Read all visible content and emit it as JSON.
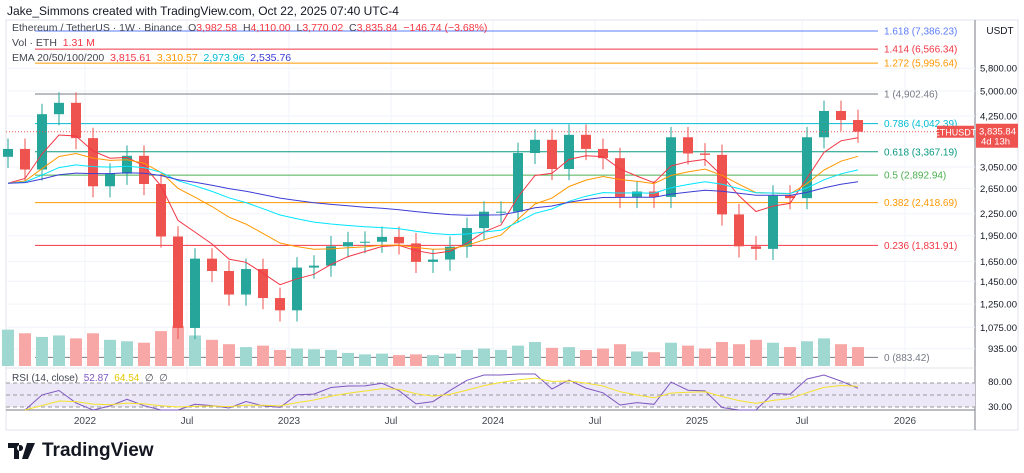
{
  "header": {
    "credit": "Jake_Simmons created with TradingView.com, Oct 22, 2025 07:40 UTC-4"
  },
  "legend": {
    "symbol": "Ethereum / TetherUS · 1W · Binance",
    "o_label": "O",
    "o": "3,982.58",
    "h_label": "H",
    "h": "4,110.00",
    "l_label": "L",
    "l": "3,770.02",
    "c_label": "C",
    "c": "3,835.84",
    "change": "−146.74 (−3.68%)",
    "vol_label": "Vol · ETH",
    "vol": "1.31 M",
    "ema_label": "EMA 20/50/100/200",
    "ema": [
      "3,815.61",
      "3,310.57",
      "2,973.96",
      "2,535.76"
    ]
  },
  "rsi": {
    "label": "RSI (14, close)",
    "value": "52.87",
    "ma": "64.54",
    "na1": "∅",
    "na2": "∅",
    "ticks": [
      "80.00",
      "30.00"
    ]
  },
  "logo": "TradingView",
  "colors": {
    "up": "#26a69a",
    "down": "#ef5350",
    "ema20": "#f23645",
    "ema50": "#ff9800",
    "ema100": "#00e5ff",
    "ema200": "#3d3dd6",
    "rsi": "#7e57c2",
    "rsi_ma": "#f5e12a"
  },
  "chart_data": {
    "type": "candlestick",
    "symbol": "ETHUSDT",
    "currency": "USDT",
    "scale": "log",
    "last_price": "3,835.84",
    "countdown": "4d 13h",
    "y_ticks": [
      5800,
      5000,
      4250,
      3050,
      2650,
      2250,
      1950,
      1650,
      1450,
      1250,
      1075,
      935
    ],
    "y_tick_labels": [
      "5,800.00",
      "5,000.00",
      "4,250.00",
      "3,050.00",
      "2,650.00",
      "2,250.00",
      "1,950.00",
      "1,650.00",
      "1,450.00",
      "1,250.00",
      "1,075.00",
      "935.00"
    ],
    "x_ticks": [
      "2022",
      "Jul",
      "2023",
      "Jul",
      "2024",
      "Jul",
      "2025",
      "Jul",
      "2026"
    ],
    "fib_levels": [
      {
        "label": "1.618 (7,386.23)",
        "price": 7386.23,
        "color": "#5b7cfa"
      },
      {
        "label": "1.414 (6,566.34)",
        "price": 6566.34,
        "color": "#f23645"
      },
      {
        "label": "1.272 (5,995.64)",
        "price": 5995.64,
        "color": "#ff9800"
      },
      {
        "label": "1 (4,902.46)",
        "price": 4902.46,
        "color": "#787b86"
      },
      {
        "label": "0.786 (4,042.39)",
        "price": 4042.39,
        "color": "#00bcd4"
      },
      {
        "label": "0.618 (3,367.19)",
        "price": 3367.19,
        "color": "#089981"
      },
      {
        "label": "0.5 (2,892.94)",
        "price": 2892.94,
        "color": "#4caf50"
      },
      {
        "label": "0.382 (2,418.69)",
        "price": 2418.69,
        "color": "#ff9800"
      },
      {
        "label": "0.236 (1,831.91)",
        "price": 1831.91,
        "color": "#f23645"
      },
      {
        "label": "0 (883.42)",
        "price": 883.42,
        "color": "#787b86"
      }
    ],
    "interval_shown": "monthly approximation",
    "closes": [
      3430,
      3000,
      4300,
      4630,
      3680,
      2690,
      2920,
      3280,
      2730,
      1940,
      1070,
      1680,
      1550,
      1330,
      1570,
      1300,
      1200,
      1585,
      1605,
      1820,
      1870,
      1875,
      1935,
      1855,
      1645,
      1670,
      1815,
      2050,
      2280,
      2280,
      3340,
      3640,
      3010,
      3760,
      3430,
      3230,
      2510,
      2600,
      2510,
      3700,
      3330,
      3300,
      2240,
      1820,
      1790,
      2530,
      2490,
      3700,
      4390,
      4140,
      3835.84
    ],
    "volumes": [
      5,
      4.5,
      4,
      4.2,
      3.8,
      4.5,
      3.6,
      3.4,
      3.2,
      4.8,
      5.5,
      4.2,
      3.6,
      3,
      2.6,
      2.8,
      2.2,
      2.4,
      2.3,
      2.2,
      1.8,
      1.6,
      1.7,
      1.5,
      1.6,
      1.5,
      1.7,
      2.2,
      2.4,
      2.2,
      2.8,
      3.3,
      2.5,
      2.6,
      2.2,
      2.4,
      3.0,
      2.0,
      1.9,
      3.2,
      2.8,
      2.4,
      3.3,
      3.0,
      3.6,
      3.2,
      2.6,
      3.4,
      3.8,
      3.0,
      2.6
    ]
  }
}
